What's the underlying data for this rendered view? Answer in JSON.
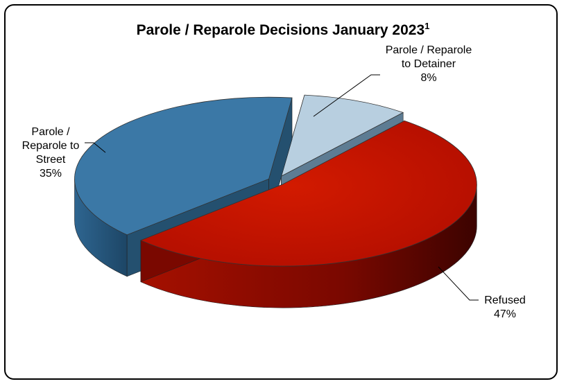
{
  "chart_data": {
    "type": "pie",
    "title": "Parole / Reparole Decisions January 2023",
    "title_footnote": "1",
    "categories": [
      "Parole / Reparole to Detainer",
      "Refused",
      "Parole / Reparole to Street"
    ],
    "values": [
      8,
      47,
      35
    ],
    "value_labels": [
      "8%",
      "47%",
      "35%"
    ],
    "colors": [
      "#b8cfe0",
      "#c01000",
      "#3b78a6"
    ],
    "exploded": true,
    "three_d": true
  },
  "labels": {
    "detainer": "Parole / Reparole\nto Detainer\n8%",
    "refused": "Refused\n47%",
    "street": "Parole /\nReparole to\nStreet\n35%"
  }
}
